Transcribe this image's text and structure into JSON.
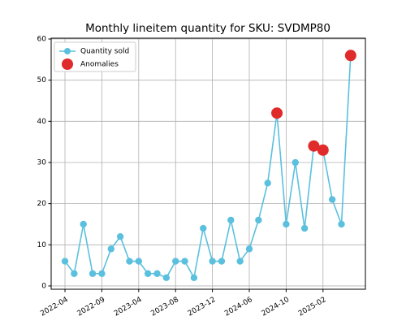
{
  "chart_data": {
    "type": "line",
    "title": "Monthly lineitem quantity for SKU: SVDMP80",
    "categories": [
      "2022-04",
      null,
      null,
      null,
      "2022-09",
      null,
      null,
      null,
      "2023-04",
      null,
      null,
      null,
      "2023-08",
      null,
      null,
      null,
      "2023-12",
      null,
      null,
      null,
      "2024-06",
      null,
      null,
      null,
      "2024-10",
      null,
      null,
      null,
      "2025-02",
      null,
      null,
      null
    ],
    "series": [
      {
        "name": "Quantity sold",
        "color": "#5bc0de",
        "style": "line",
        "values": [
          6,
          3,
          15,
          3,
          3,
          9,
          12,
          6,
          6,
          3,
          3,
          2,
          6,
          6,
          2,
          14,
          6,
          6,
          16,
          6,
          9,
          16,
          25,
          42,
          15,
          30,
          14,
          34,
          33,
          21,
          15,
          56
        ]
      },
      {
        "name": "Anomalies",
        "color": "#e02b2b",
        "style": "scatter",
        "values": [
          null,
          null,
          null,
          null,
          null,
          null,
          null,
          null,
          null,
          null,
          null,
          null,
          null,
          null,
          null,
          null,
          null,
          null,
          null,
          null,
          null,
          null,
          null,
          42,
          null,
          null,
          null,
          34,
          33,
          null,
          null,
          56
        ]
      }
    ],
    "xlim": [
      -1.5,
      32.6
    ],
    "ylim": [
      -0.8,
      60.2
    ],
    "yticks": [
      0,
      10,
      20,
      30,
      40,
      50,
      60
    ],
    "grid": true,
    "legend": "upper-left"
  }
}
